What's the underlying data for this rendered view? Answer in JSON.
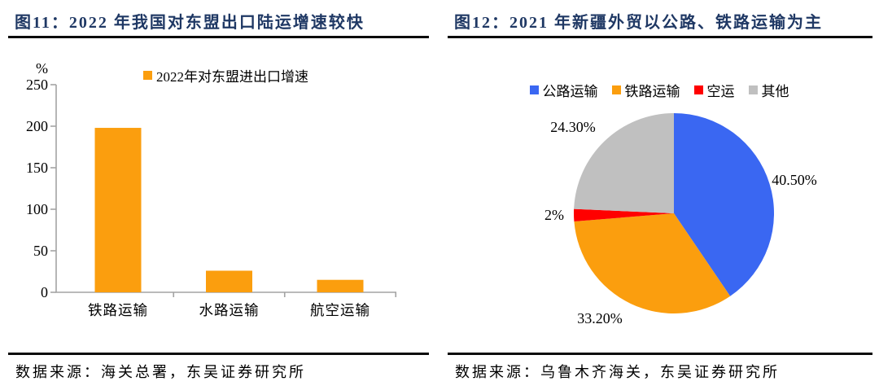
{
  "figures": {
    "left": {
      "title": "图11：2022 年我国对东盟出口陆运增速较快",
      "source": "数据来源：海关总署，东吴证券研究所"
    },
    "right": {
      "title": "图12：2021 年新疆外贸以公路、铁路运输为主",
      "source": "数据来源：乌鲁木齐海关，东吴证券研究所"
    }
  },
  "colors": {
    "title": "#1F3864",
    "rule": "#0A0A0A",
    "axis": "#A3A3A3",
    "orange": "#FB9E0E",
    "blue": "#3A67F2",
    "red": "#FF0000",
    "gray": "#C0C0C0"
  },
  "chart_data": [
    {
      "id": "asean-export-growth-bar",
      "type": "bar",
      "title": "图11：2022 年我国对东盟出口陆运增速较快",
      "legend": [
        "2022年对东盟进出口增速"
      ],
      "categories": [
        "铁路运输",
        "水路运输",
        "航空运输"
      ],
      "values": [
        198,
        26,
        15
      ],
      "unit_label": "%",
      "ylabel": "%",
      "xlabel": "",
      "yticks": [
        0,
        50,
        100,
        150,
        200,
        250
      ],
      "ylim": [
        0,
        250
      ],
      "bar_color": "#FB9E0E",
      "grid": false,
      "legend_position": "top"
    },
    {
      "id": "xinjiang-trade-transport-pie",
      "type": "pie",
      "title": "图12：2021 年新疆外贸以公路、铁路运输为主",
      "legend": [
        "公路运输",
        "铁路运输",
        "空运",
        "其他"
      ],
      "values": [
        40.5,
        33.2,
        2,
        24.3
      ],
      "labels": [
        "40.50%",
        "33.20%",
        "2%",
        "24.30%"
      ],
      "colors": [
        "#3A67F2",
        "#FB9E0E",
        "#FF0000",
        "#C0C0C0"
      ],
      "start_angle_deg": 0,
      "direction": "clockwise",
      "legend_position": "top"
    }
  ]
}
